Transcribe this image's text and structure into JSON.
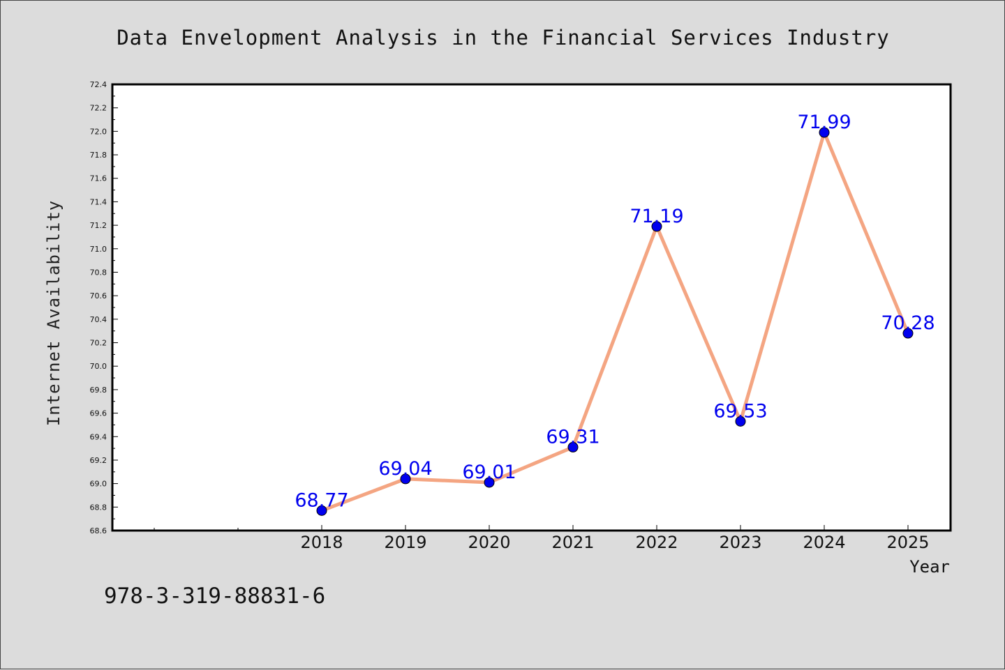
{
  "chart_data": {
    "type": "line",
    "title": "Data Envelopment Analysis in the Financial Services Industry",
    "xlabel": "Year",
    "ylabel": "Internet Availability",
    "x": [
      "2018",
      "2019",
      "2020",
      "2021",
      "2022",
      "2023",
      "2024",
      "2025"
    ],
    "series": [
      {
        "values": [
          68.77,
          69.04,
          69.01,
          69.31,
          71.19,
          69.53,
          71.99,
          70.28
        ],
        "data_labels": [
          "68.77",
          "69.04",
          "69.01",
          "69.31",
          "71.19",
          "69.53",
          "71.99",
          "70.28"
        ]
      }
    ],
    "ylim": [
      68.6,
      72.4
    ],
    "yticks": [
      "68.6",
      "68.8",
      "69.0",
      "69.2",
      "69.4",
      "69.6",
      "69.8",
      "70.0",
      "70.2",
      "70.4",
      "70.6",
      "70.8",
      "71.0",
      "71.2",
      "71.4",
      "71.6",
      "71.8",
      "72.0",
      "72.2",
      "72.4"
    ],
    "grid": false,
    "legend": "none",
    "colors": {
      "line": "#f4a582",
      "marker": "#0000ee",
      "data_label": "#0000ee",
      "plot_background": "#ffffff",
      "figure_background": "#dcdcdc"
    }
  },
  "footnote": "978-3-319-88831-6"
}
